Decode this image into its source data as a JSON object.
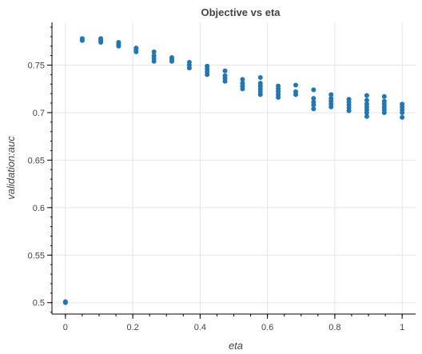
{
  "chart_data": {
    "type": "scatter",
    "title": "Objective vs eta",
    "xlabel": "eta",
    "ylabel": "validation:auc",
    "xlim": [
      -0.04,
      1.04
    ],
    "ylim": [
      0.488,
      0.795
    ],
    "xticks": [
      0,
      0.2,
      0.4,
      0.6,
      0.8,
      1
    ],
    "xtick_labels": [
      "0",
      "0.2",
      "0.4",
      "0.6",
      "0.8",
      "1"
    ],
    "yticks": [
      0.5,
      0.55,
      0.6,
      0.65,
      0.7,
      0.75
    ],
    "ytick_labels": [
      "0.5",
      "0.55",
      "0.6",
      "0.65",
      "0.7",
      "0.75"
    ],
    "grid": true,
    "color": "#1f77b4",
    "points": [
      [
        0,
        0.5
      ],
      [
        0,
        0.501
      ],
      [
        0.05,
        0.776
      ],
      [
        0.05,
        0.778
      ],
      [
        0.105,
        0.774
      ],
      [
        0.105,
        0.776
      ],
      [
        0.105,
        0.778
      ],
      [
        0.158,
        0.77
      ],
      [
        0.158,
        0.772
      ],
      [
        0.158,
        0.774
      ],
      [
        0.21,
        0.764
      ],
      [
        0.21,
        0.766
      ],
      [
        0.21,
        0.768
      ],
      [
        0.263,
        0.754
      ],
      [
        0.263,
        0.757
      ],
      [
        0.263,
        0.76
      ],
      [
        0.263,
        0.764
      ],
      [
        0.316,
        0.754
      ],
      [
        0.316,
        0.756
      ],
      [
        0.316,
        0.758
      ],
      [
        0.368,
        0.747
      ],
      [
        0.368,
        0.75
      ],
      [
        0.368,
        0.753
      ],
      [
        0.421,
        0.74
      ],
      [
        0.421,
        0.743
      ],
      [
        0.421,
        0.746
      ],
      [
        0.421,
        0.749
      ],
      [
        0.474,
        0.733
      ],
      [
        0.474,
        0.736
      ],
      [
        0.474,
        0.739
      ],
      [
        0.474,
        0.744
      ],
      [
        0.526,
        0.725
      ],
      [
        0.526,
        0.728
      ],
      [
        0.526,
        0.731
      ],
      [
        0.526,
        0.735
      ],
      [
        0.579,
        0.719
      ],
      [
        0.579,
        0.722
      ],
      [
        0.579,
        0.725
      ],
      [
        0.579,
        0.728
      ],
      [
        0.579,
        0.731
      ],
      [
        0.579,
        0.737
      ],
      [
        0.632,
        0.716
      ],
      [
        0.632,
        0.719
      ],
      [
        0.632,
        0.722
      ],
      [
        0.632,
        0.725
      ],
      [
        0.632,
        0.728
      ],
      [
        0.684,
        0.719
      ],
      [
        0.684,
        0.722
      ],
      [
        0.684,
        0.729
      ],
      [
        0.737,
        0.704
      ],
      [
        0.737,
        0.708
      ],
      [
        0.737,
        0.711
      ],
      [
        0.737,
        0.715
      ],
      [
        0.737,
        0.724
      ],
      [
        0.789,
        0.706
      ],
      [
        0.789,
        0.709
      ],
      [
        0.789,
        0.712
      ],
      [
        0.789,
        0.715
      ],
      [
        0.789,
        0.719
      ],
      [
        0.842,
        0.702
      ],
      [
        0.842,
        0.705
      ],
      [
        0.842,
        0.708
      ],
      [
        0.842,
        0.711
      ],
      [
        0.842,
        0.714
      ],
      [
        0.895,
        0.696
      ],
      [
        0.895,
        0.7
      ],
      [
        0.895,
        0.703
      ],
      [
        0.895,
        0.706
      ],
      [
        0.895,
        0.709
      ],
      [
        0.895,
        0.713
      ],
      [
        0.895,
        0.718
      ],
      [
        0.947,
        0.7
      ],
      [
        0.947,
        0.703
      ],
      [
        0.947,
        0.706
      ],
      [
        0.947,
        0.709
      ],
      [
        0.947,
        0.712
      ],
      [
        0.947,
        0.717
      ],
      [
        1.0,
        0.695
      ],
      [
        1.0,
        0.7
      ],
      [
        1.0,
        0.703
      ],
      [
        1.0,
        0.706
      ],
      [
        1.0,
        0.709
      ]
    ]
  }
}
